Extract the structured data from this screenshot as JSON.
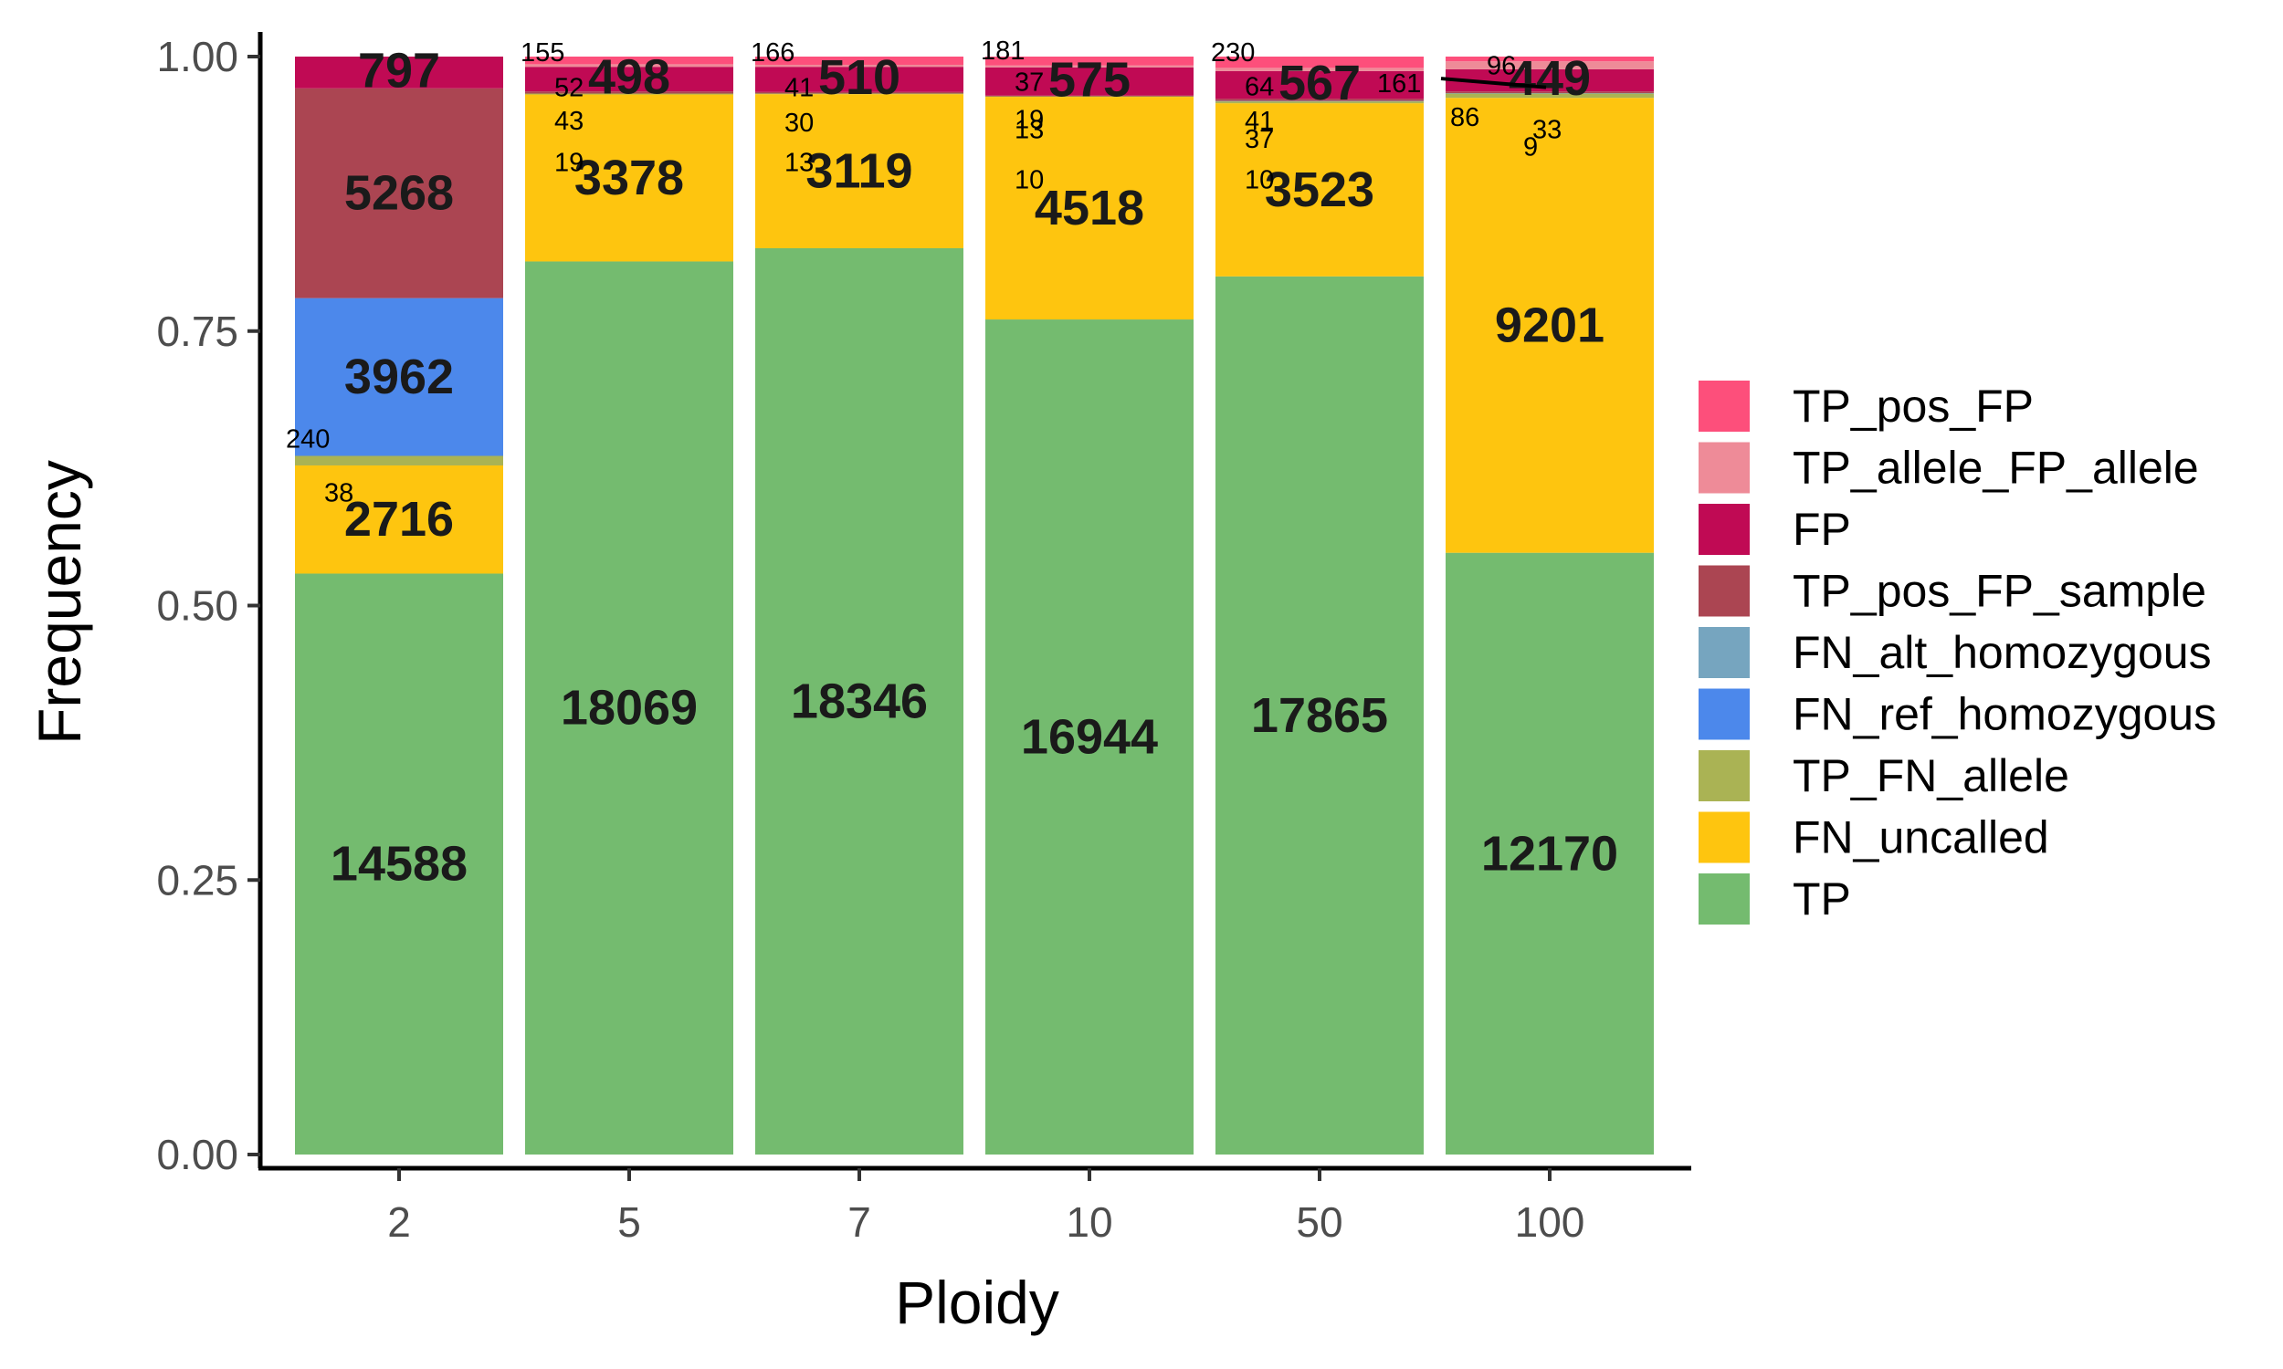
{
  "chart_data": {
    "type": "bar",
    "stacked": true,
    "normalized": true,
    "xlabel": "Ploidy",
    "ylabel": "Frequency",
    "ylim": [
      0,
      1
    ],
    "yticks": [
      "0.00",
      "0.25",
      "0.50",
      "0.75",
      "1.00"
    ],
    "categories": [
      "2",
      "5",
      "7",
      "10",
      "50",
      "100"
    ],
    "legend_position": "right",
    "series": [
      {
        "name": "TP",
        "color": "#74BB6F",
        "values": [
          14588,
          18069,
          18346,
          16944,
          17865,
          12170
        ]
      },
      {
        "name": "FN_uncalled",
        "color": "#FEC50F",
        "values": [
          2716,
          3378,
          3119,
          4518,
          3523,
          9201
        ]
      },
      {
        "name": "TP_FN_allele",
        "color": "#AAB354",
        "values": [
          240,
          19,
          13,
          10,
          37,
          86
        ]
      },
      {
        "name": "FN_ref_homozygous",
        "color": "#4C88EB",
        "values": [
          3962,
          0,
          0,
          0,
          0,
          0
        ]
      },
      {
        "name": "FN_alt_homozygous",
        "color": "#76A5BF",
        "values": [
          0,
          0,
          0,
          0,
          10,
          9
        ]
      },
      {
        "name": "TP_pos_FP_sample",
        "color": "#AB4552",
        "values": [
          5268,
          43,
          30,
          13,
          41,
          33
        ]
      },
      {
        "name": "FP",
        "color": "#C00A54",
        "values": [
          797,
          498,
          510,
          575,
          567,
          449
        ]
      },
      {
        "name": "TP_allele_FP_allele",
        "color": "#EE8B98",
        "values": [
          0,
          52,
          41,
          37,
          64,
          161
        ]
      },
      {
        "name": "TP_pos_FP",
        "color": "#FD4F7B",
        "values": [
          0,
          155,
          166,
          181,
          230,
          96
        ]
      }
    ],
    "legend_order": [
      "TP_pos_FP",
      "TP_allele_FP_allele",
      "FP",
      "TP_pos_FP_sample",
      "FN_alt_homozygous",
      "FN_ref_homozygous",
      "TP_FN_allele",
      "FN_uncalled",
      "TP"
    ],
    "extra_labels": [
      {
        "category": "2",
        "text": "38"
      },
      {
        "category": "10",
        "text": "19"
      }
    ]
  }
}
